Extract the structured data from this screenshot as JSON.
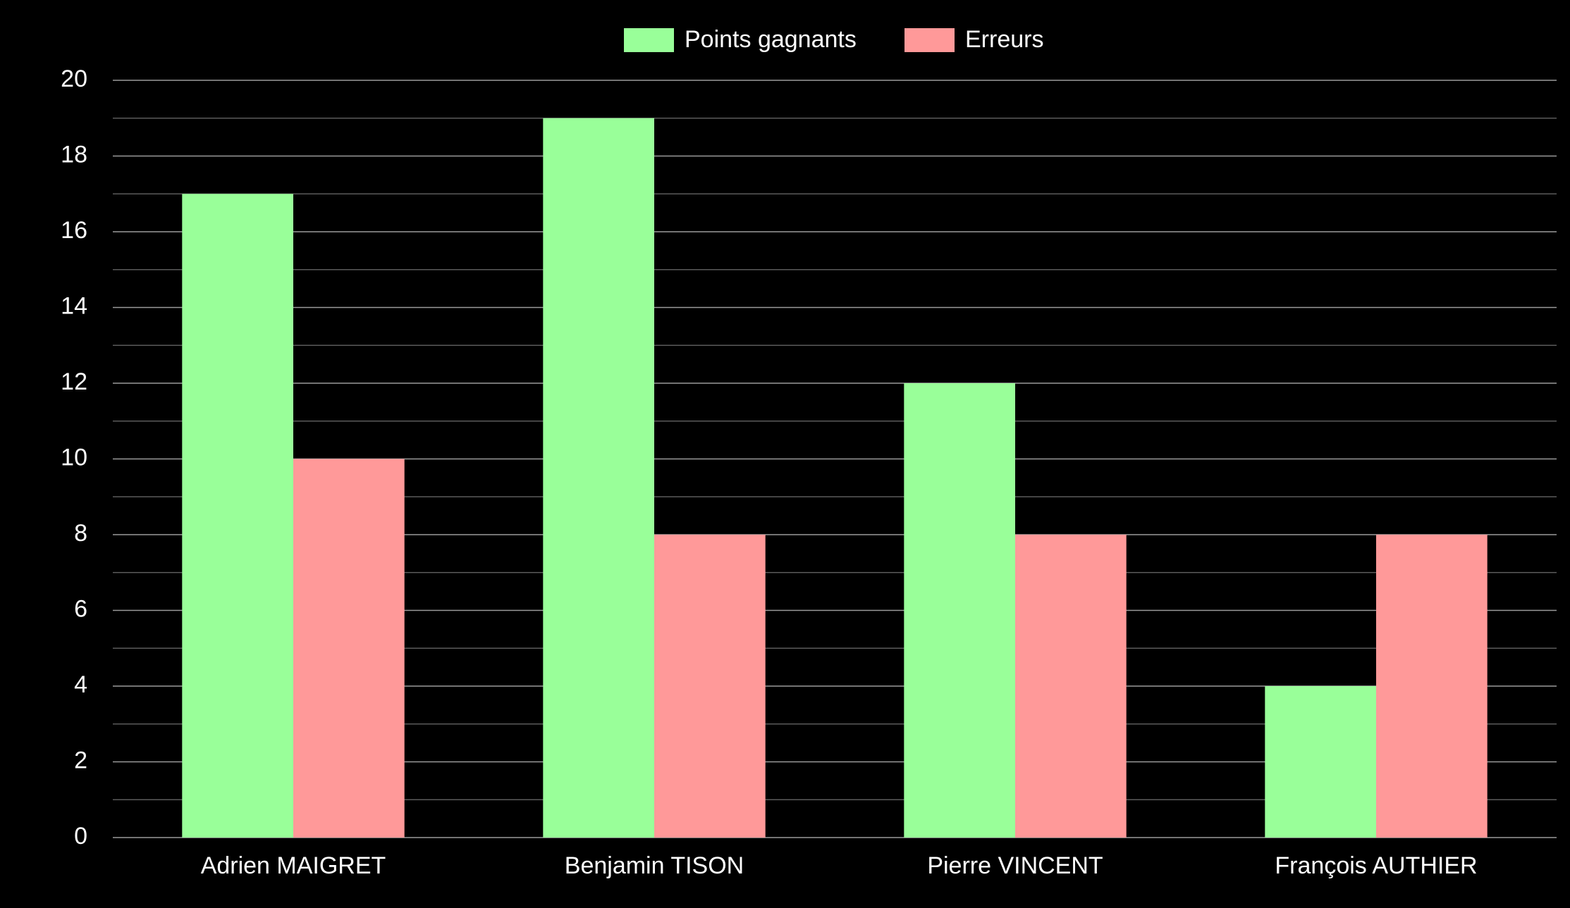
{
  "chart_data": {
    "type": "bar",
    "categories": [
      "Adrien MAIGRET",
      "Benjamin TISON",
      "Pierre VINCENT",
      "François AUTHIER"
    ],
    "series": [
      {
        "name": "Points gagnants",
        "color": "#99ff99",
        "values": [
          17,
          19,
          12,
          4
        ]
      },
      {
        "name": "Erreurs",
        "color": "#ff9999",
        "values": [
          10,
          8,
          8,
          8
        ]
      }
    ],
    "ylim": [
      0,
      20
    ],
    "yticks": [
      0,
      2,
      4,
      6,
      8,
      10,
      12,
      14,
      16,
      18,
      20
    ],
    "minor_yticks": [
      1,
      3,
      5,
      7,
      9,
      11,
      13,
      15,
      17,
      19
    ],
    "grid": true,
    "legend": "top"
  }
}
